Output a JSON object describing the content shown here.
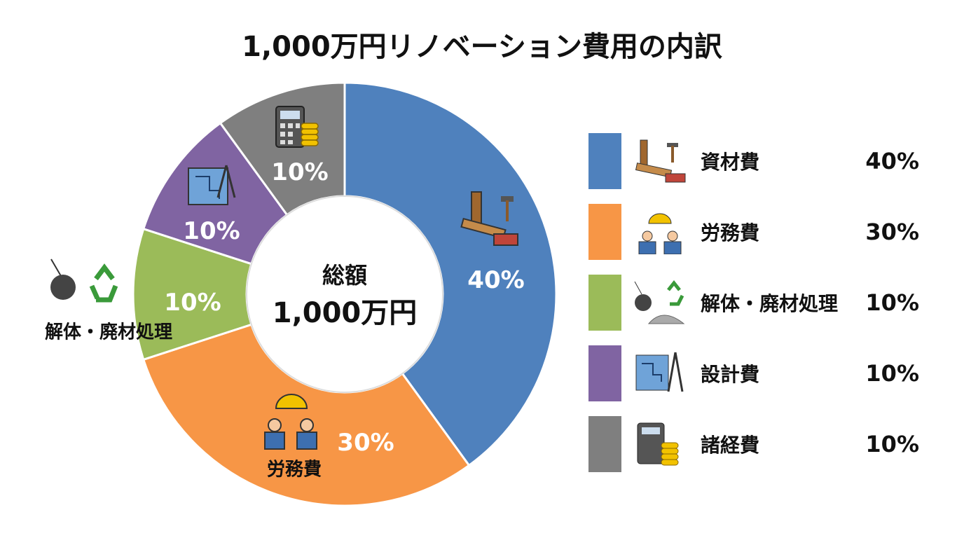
{
  "title": "1,000万円リノベーション費用の内訳",
  "center": {
    "line1": "総額",
    "line2": "1,000万円"
  },
  "external_labels": {
    "demolition": "解体・廃材処理",
    "labor": "労務費"
  },
  "chart_data": {
    "type": "pie",
    "donut": true,
    "title": "1,000万円リノベーション費用の内訳",
    "start": "top, clockwise",
    "legend_position": "right",
    "slices": [
      {
        "name": "資材費",
        "value": 40,
        "label": "40%",
        "color": "#4F81BD",
        "icon": "lumber-tools-bricks-icon"
      },
      {
        "name": "労務費",
        "value": 30,
        "label": "30%",
        "color": "#F79646",
        "icon": "construction-workers-icon"
      },
      {
        "name": "解体・廃材処理",
        "value": 10,
        "label": "10%",
        "color": "#9BBB59",
        "icon": "wrecking-ball-recycle-icon"
      },
      {
        "name": "設計費",
        "value": 10,
        "label": "10%",
        "color": "#8064A2",
        "icon": "blueprint-compass-icon"
      },
      {
        "name": "諸経費",
        "value": 10,
        "label": "10%",
        "color": "#7F7F7F",
        "icon": "calculator-coins-icon"
      }
    ]
  }
}
